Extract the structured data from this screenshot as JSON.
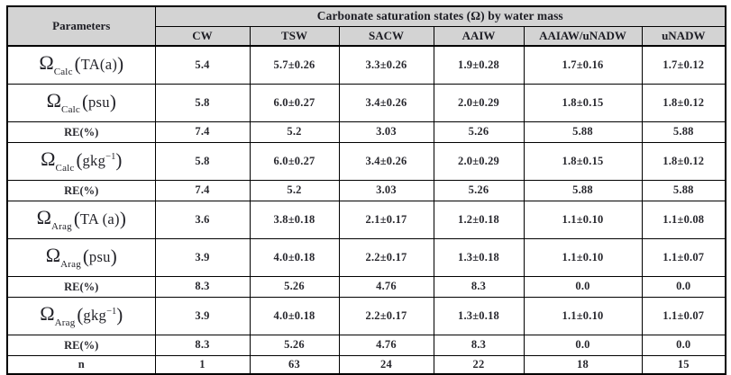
{
  "table": {
    "title": "Carbonate saturation states (Ω) by water mass",
    "params_header": "Parameters",
    "water_mass_columns": [
      "CW",
      "TSW",
      "SACW",
      "AAIW",
      "AAIAW/uNADW",
      "uNADW"
    ],
    "rows": [
      {
        "kind": "param",
        "label_parts": [
          {
            "t": "Ω",
            "s": "omega"
          },
          {
            "t": "Calc",
            "s": "sub"
          },
          {
            "t": "(",
            "s": "paren"
          },
          {
            "t": "TA(a)",
            "s": "arg"
          },
          {
            "t": ")",
            "s": "paren"
          }
        ],
        "values": [
          "5.4",
          "5.7±0.26",
          "3.3±0.26",
          "1.9±0.28",
          "1.7±0.16",
          "1.7±0.12"
        ]
      },
      {
        "kind": "param",
        "label_parts": [
          {
            "t": "Ω",
            "s": "omega"
          },
          {
            "t": "Calc",
            "s": "sub"
          },
          {
            "t": "(",
            "s": "paren"
          },
          {
            "t": "psu",
            "s": "arg"
          },
          {
            "t": ")",
            "s": "paren"
          }
        ],
        "values": [
          "5.8",
          "6.0±0.27",
          "3.4±0.26",
          "2.0±0.29",
          "1.8±0.15",
          "1.8±0.12"
        ]
      },
      {
        "kind": "re",
        "label_parts": [
          {
            "t": "RE(%)",
            "s": "plain"
          }
        ],
        "values": [
          "7.4",
          "5.2",
          "3.03",
          "5.26",
          "5.88",
          "5.88"
        ]
      },
      {
        "kind": "param",
        "label_parts": [
          {
            "t": "Ω",
            "s": "omega"
          },
          {
            "t": "Calc",
            "s": "sub"
          },
          {
            "t": "(",
            "s": "paren"
          },
          {
            "t": "gkg",
            "s": "arg"
          },
          {
            "t": "−1",
            "s": "sup"
          },
          {
            "t": ")",
            "s": "paren"
          }
        ],
        "values": [
          "5.8",
          "6.0±0.27",
          "3.4±0.26",
          "2.0±0.29",
          "1.8±0.15",
          "1.8±0.12"
        ]
      },
      {
        "kind": "re",
        "label_parts": [
          {
            "t": "RE(%)",
            "s": "plain"
          }
        ],
        "values": [
          "7.4",
          "5.2",
          "3.03",
          "5.26",
          "5.88",
          "5.88"
        ]
      },
      {
        "kind": "param",
        "label_parts": [
          {
            "t": "Ω",
            "s": "omega"
          },
          {
            "t": "Arag",
            "s": "sub"
          },
          {
            "t": "(",
            "s": "paren"
          },
          {
            "t": "TA (a)",
            "s": "arg"
          },
          {
            "t": ")",
            "s": "paren"
          }
        ],
        "values": [
          "3.6",
          "3.8±0.18",
          "2.1±0.17",
          "1.2±0.18",
          "1.1±0.10",
          "1.1±0.08"
        ]
      },
      {
        "kind": "param",
        "label_parts": [
          {
            "t": "Ω",
            "s": "omega"
          },
          {
            "t": "Arag",
            "s": "sub"
          },
          {
            "t": "(",
            "s": "paren"
          },
          {
            "t": "psu",
            "s": "arg"
          },
          {
            "t": ")",
            "s": "paren"
          }
        ],
        "values": [
          "3.9",
          "4.0±0.18",
          "2.2±0.17",
          "1.3±0.18",
          "1.1±0.10",
          "1.1±0.07"
        ]
      },
      {
        "kind": "re",
        "label_parts": [
          {
            "t": "RE(%)",
            "s": "plain"
          }
        ],
        "values": [
          "8.3",
          "5.26",
          "4.76",
          "8.3",
          "0.0",
          "0.0"
        ]
      },
      {
        "kind": "param",
        "label_parts": [
          {
            "t": "Ω",
            "s": "omega"
          },
          {
            "t": "Arag",
            "s": "sub"
          },
          {
            "t": "(",
            "s": "paren"
          },
          {
            "t": "gkg",
            "s": "arg"
          },
          {
            "t": "−1",
            "s": "sup"
          },
          {
            "t": ")",
            "s": "paren"
          }
        ],
        "values": [
          "3.9",
          "4.0±0.18",
          "2.2±0.17",
          "1.3±0.18",
          "1.1±0.10",
          "1.1±0.07"
        ]
      },
      {
        "kind": "re",
        "label_parts": [
          {
            "t": "RE(%)",
            "s": "plain"
          }
        ],
        "values": [
          "8.3",
          "5.26",
          "4.76",
          "8.3",
          "0.0",
          "0.0"
        ]
      },
      {
        "kind": "n",
        "label_parts": [
          {
            "t": "n",
            "s": "plain"
          }
        ],
        "values": [
          "1",
          "63",
          "24",
          "22",
          "18",
          "15"
        ]
      }
    ]
  }
}
